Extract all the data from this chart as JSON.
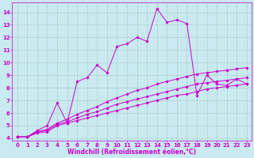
{
  "background_color": "#c8eaf0",
  "line_color": "#cc00cc",
  "grid_color": "#aacccc",
  "xlabel": "Windchill (Refroidissement éolien,°C)",
  "xlabel_color": "#cc00cc",
  "tick_color": "#cc00cc",
  "xlim": [
    -0.5,
    23.5
  ],
  "ylim": [
    3.8,
    14.8
  ],
  "yticks": [
    4,
    5,
    6,
    7,
    8,
    9,
    10,
    11,
    12,
    13,
    14
  ],
  "xticks": [
    0,
    1,
    2,
    3,
    4,
    5,
    6,
    7,
    8,
    9,
    10,
    11,
    12,
    13,
    14,
    15,
    16,
    17,
    18,
    19,
    20,
    21,
    22,
    23
  ],
  "lines": [
    {
      "x": [
        0,
        1,
        2,
        3,
        4,
        5,
        6,
        7,
        8,
        9,
        10,
        11,
        12,
        13,
        14,
        15,
        16,
        17,
        18,
        19,
        20,
        21,
        22,
        23
      ],
      "y": [
        4.1,
        4.1,
        4.4,
        4.5,
        5.0,
        5.2,
        5.4,
        5.6,
        5.8,
        6.0,
        6.2,
        6.4,
        6.6,
        6.8,
        7.0,
        7.2,
        7.4,
        7.5,
        7.7,
        7.9,
        8.0,
        8.1,
        8.2,
        8.3
      ]
    },
    {
      "x": [
        0,
        1,
        2,
        3,
        4,
        5,
        6,
        7,
        8,
        9,
        10,
        11,
        12,
        13,
        14,
        15,
        16,
        17,
        18,
        19,
        20,
        21,
        22,
        23
      ],
      "y": [
        4.1,
        4.1,
        4.5,
        4.6,
        5.1,
        5.3,
        5.6,
        5.9,
        6.1,
        6.4,
        6.7,
        6.9,
        7.1,
        7.3,
        7.5,
        7.7,
        7.9,
        8.1,
        8.3,
        8.4,
        8.5,
        8.6,
        8.7,
        8.8
      ]
    },
    {
      "x": [
        0,
        1,
        2,
        3,
        4,
        5,
        6,
        7,
        8,
        9,
        10,
        11,
        12,
        13,
        14,
        15,
        16,
        17,
        18,
        19,
        20,
        21,
        22,
        23
      ],
      "y": [
        4.1,
        4.1,
        4.5,
        4.7,
        5.2,
        5.5,
        5.9,
        6.2,
        6.5,
        6.9,
        7.2,
        7.5,
        7.8,
        8.0,
        8.3,
        8.5,
        8.7,
        8.9,
        9.1,
        9.2,
        9.3,
        9.4,
        9.5,
        9.6
      ]
    },
    {
      "x": [
        0,
        1,
        2,
        3,
        4,
        5,
        6,
        7,
        8,
        9,
        10,
        11,
        12,
        13,
        14,
        15,
        16,
        17,
        18,
        19,
        20,
        21,
        22,
        23
      ],
      "y": [
        4.1,
        4.1,
        4.6,
        5.0,
        6.8,
        5.2,
        8.5,
        8.8,
        9.8,
        9.2,
        11.3,
        11.5,
        12.0,
        11.7,
        14.3,
        13.2,
        13.4,
        13.1,
        7.4,
        9.0,
        8.3,
        8.2,
        8.7,
        8.3
      ]
    }
  ],
  "marker": "D",
  "markersize": 1.8,
  "linewidth": 0.7,
  "fontsize_ticks": 5.0,
  "fontsize_xlabel": 5.5
}
